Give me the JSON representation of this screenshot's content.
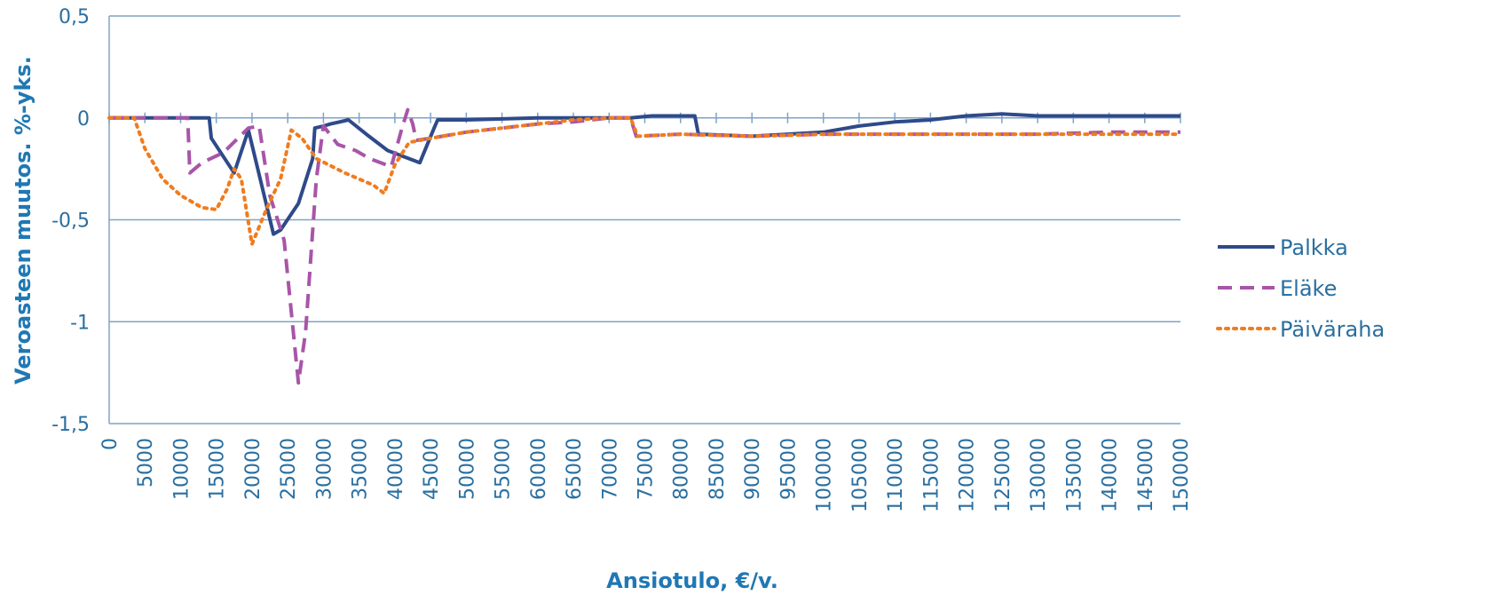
{
  "chart_data": {
    "type": "line",
    "title": "",
    "xlabel": "Ansiotulo, €/v.",
    "ylabel": "Veroasteen muutos. %-yks.",
    "xlim": [
      0,
      150000
    ],
    "ylim": [
      -1.5,
      0.5
    ],
    "x_ticks": [
      0,
      5000,
      10000,
      15000,
      20000,
      25000,
      30000,
      35000,
      40000,
      45000,
      50000,
      55000,
      60000,
      65000,
      70000,
      75000,
      80000,
      85000,
      90000,
      95000,
      100000,
      105000,
      110000,
      115000,
      120000,
      125000,
      130000,
      135000,
      140000,
      145000,
      150000
    ],
    "y_ticks": [
      0.5,
      0,
      -0.5,
      -1,
      -1.5
    ],
    "y_tick_labels": [
      "0,5",
      "0",
      "-0,5",
      "-1",
      "-1,5"
    ],
    "grid": "horizontal",
    "legend_position": "right",
    "series": [
      {
        "name": "Palkka",
        "color": "#2e4a8a",
        "style": "solid",
        "points": [
          [
            0,
            0
          ],
          [
            14000,
            0
          ],
          [
            14300,
            -0.1
          ],
          [
            17500,
            -0.27
          ],
          [
            19500,
            -0.06
          ],
          [
            23000,
            -0.57
          ],
          [
            24000,
            -0.55
          ],
          [
            26500,
            -0.42
          ],
          [
            28500,
            -0.2
          ],
          [
            28800,
            -0.05
          ],
          [
            30000,
            -0.04
          ],
          [
            31000,
            -0.03
          ],
          [
            33500,
            -0.01
          ],
          [
            36000,
            -0.08
          ],
          [
            39000,
            -0.16
          ],
          [
            43500,
            -0.22
          ],
          [
            45500,
            -0.05
          ],
          [
            46000,
            -0.01
          ],
          [
            50000,
            -0.01
          ],
          [
            60000,
            0
          ],
          [
            70000,
            0
          ],
          [
            73000,
            0
          ],
          [
            76000,
            0.01
          ],
          [
            82000,
            0.01
          ],
          [
            82500,
            -0.08
          ],
          [
            90000,
            -0.09
          ],
          [
            100000,
            -0.07
          ],
          [
            105000,
            -0.04
          ],
          [
            110000,
            -0.02
          ],
          [
            115000,
            -0.01
          ],
          [
            120000,
            0.01
          ],
          [
            125000,
            0.02
          ],
          [
            130000,
            0.01
          ],
          [
            140000,
            0.01
          ],
          [
            150000,
            0.01
          ]
        ]
      },
      {
        "name": "Eläke",
        "color": "#a855a8",
        "style": "dashed",
        "points": [
          [
            0,
            0
          ],
          [
            11000,
            0
          ],
          [
            11300,
            -0.27
          ],
          [
            13000,
            -0.22
          ],
          [
            16000,
            -0.17
          ],
          [
            19500,
            -0.05
          ],
          [
            21000,
            -0.04
          ],
          [
            22500,
            -0.38
          ],
          [
            24500,
            -0.6
          ],
          [
            26500,
            -1.3
          ],
          [
            27500,
            -1.05
          ],
          [
            29000,
            -0.3
          ],
          [
            30000,
            -0.04
          ],
          [
            32000,
            -0.13
          ],
          [
            34500,
            -0.16
          ],
          [
            36500,
            -0.2
          ],
          [
            39500,
            -0.24
          ],
          [
            41000,
            -0.05
          ],
          [
            41800,
            0.04
          ],
          [
            42500,
            -0.03
          ],
          [
            43000,
            -0.11
          ],
          [
            45000,
            -0.1
          ],
          [
            50000,
            -0.07
          ],
          [
            55000,
            -0.05
          ],
          [
            60000,
            -0.03
          ],
          [
            65000,
            -0.02
          ],
          [
            70000,
            0
          ],
          [
            73000,
            0
          ],
          [
            73800,
            -0.09
          ],
          [
            80000,
            -0.08
          ],
          [
            90000,
            -0.09
          ],
          [
            100000,
            -0.08
          ],
          [
            110000,
            -0.08
          ],
          [
            120000,
            -0.08
          ],
          [
            130000,
            -0.08
          ],
          [
            140000,
            -0.07
          ],
          [
            150000,
            -0.07
          ]
        ]
      },
      {
        "name": "Päiväraha",
        "color": "#f07c1e",
        "style": "dotted",
        "points": [
          [
            0,
            0
          ],
          [
            3500,
            0
          ],
          [
            5000,
            -0.15
          ],
          [
            7500,
            -0.3
          ],
          [
            10000,
            -0.38
          ],
          [
            13000,
            -0.44
          ],
          [
            15000,
            -0.45
          ],
          [
            16500,
            -0.35
          ],
          [
            17500,
            -0.25
          ],
          [
            18500,
            -0.3
          ],
          [
            20000,
            -0.62
          ],
          [
            22000,
            -0.45
          ],
          [
            24000,
            -0.3
          ],
          [
            25500,
            -0.06
          ],
          [
            27000,
            -0.1
          ],
          [
            29000,
            -0.2
          ],
          [
            33000,
            -0.27
          ],
          [
            37000,
            -0.33
          ],
          [
            38500,
            -0.37
          ],
          [
            40000,
            -0.23
          ],
          [
            42000,
            -0.12
          ],
          [
            45000,
            -0.1
          ],
          [
            50000,
            -0.07
          ],
          [
            55000,
            -0.05
          ],
          [
            60000,
            -0.03
          ],
          [
            65000,
            -0.01
          ],
          [
            70000,
            0
          ],
          [
            73000,
            0
          ],
          [
            74000,
            -0.09
          ],
          [
            80000,
            -0.08
          ],
          [
            90000,
            -0.09
          ],
          [
            100000,
            -0.08
          ],
          [
            110000,
            -0.08
          ],
          [
            120000,
            -0.08
          ],
          [
            130000,
            -0.08
          ],
          [
            140000,
            -0.08
          ],
          [
            150000,
            -0.08
          ]
        ]
      }
    ]
  }
}
